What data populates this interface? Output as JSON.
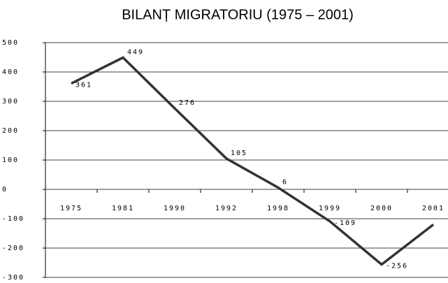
{
  "chart_data": {
    "type": "line",
    "title": "BILANȚ MIGRATORIU (1975 – 2001)",
    "categories": [
      "1975",
      "1981",
      "1990",
      "1992",
      "1998",
      "1999",
      "2000",
      "2001"
    ],
    "series": [
      {
        "name": "Bilanț migratoriu",
        "color": "#333333",
        "values": [
          361,
          449,
          276,
          105,
          6,
          -109,
          -256,
          -120
        ],
        "value_labels": [
          "361",
          "449",
          "276",
          "105",
          "6",
          "-109",
          "-256",
          null
        ]
      }
    ],
    "ylim": [
      -300,
      500
    ],
    "yticks": [
      -300,
      -200,
      -100,
      0,
      100,
      200,
      300,
      400,
      500
    ],
    "grid": true
  }
}
